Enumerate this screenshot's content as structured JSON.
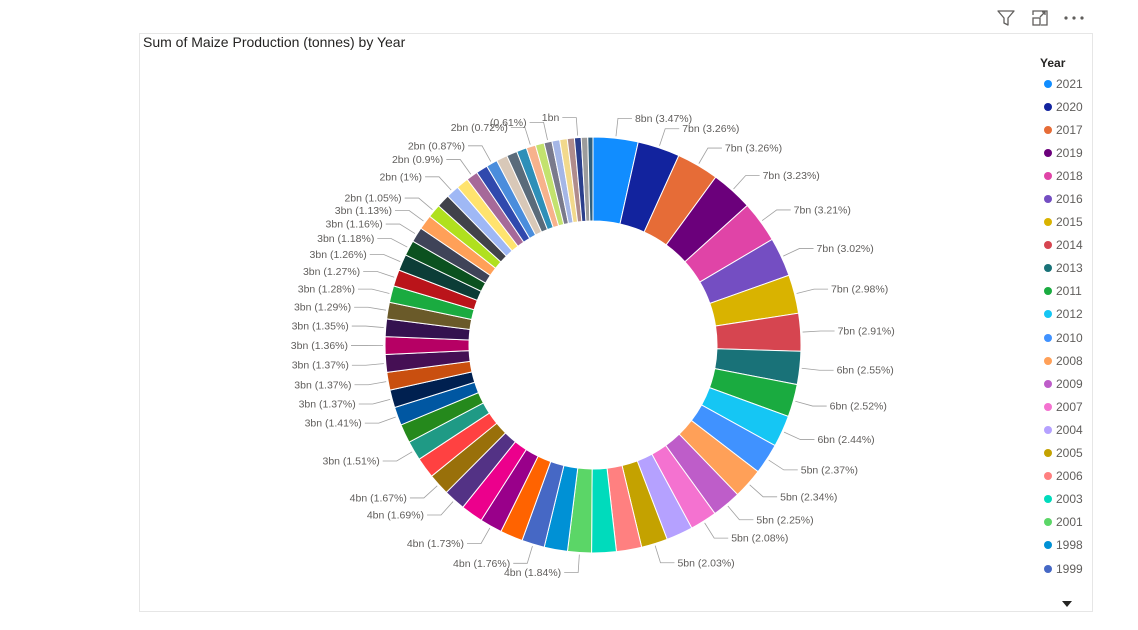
{
  "toolbar": {
    "filter_icon": "filter-icon",
    "focus_icon": "focus-mode-icon",
    "more_icon": "more-options-icon"
  },
  "chart_data": {
    "type": "donut",
    "title": "Sum of Maize Production (tonnes) by Year",
    "legend_title": "Year",
    "legend_position": "right",
    "slices": [
      {
        "year": "2021",
        "label": "8bn (3.47%)",
        "percent": 3.47,
        "color": "#118DFF"
      },
      {
        "year": "2020",
        "label": "7bn (3.26%)",
        "percent": 3.26,
        "color": "#12239E"
      },
      {
        "year": "2017",
        "label": "7bn (3.26%)",
        "percent": 3.26,
        "color": "#E66C37"
      },
      {
        "year": "2019",
        "label": "7bn (3.23%)",
        "percent": 3.23,
        "color": "#6B007B"
      },
      {
        "year": "2018",
        "label": "7bn (3.21%)",
        "percent": 3.21,
        "color": "#E044A7"
      },
      {
        "year": "2016",
        "label": "7bn (3.02%)",
        "percent": 3.02,
        "color": "#744EC2"
      },
      {
        "year": "2015",
        "label": "7bn (2.98%)",
        "percent": 2.98,
        "color": "#D9B300"
      },
      {
        "year": "2014",
        "label": "7bn (2.91%)",
        "percent": 2.91,
        "color": "#D64550"
      },
      {
        "year": "2013",
        "label": "6bn (2.55%)",
        "percent": 2.55,
        "color": "#197278"
      },
      {
        "year": "2011",
        "label": "6bn (2.52%)",
        "percent": 2.52,
        "color": "#1AAB40"
      },
      {
        "year": "2012",
        "label": "6bn (2.44%)",
        "percent": 2.44,
        "color": "#15C6F4"
      },
      {
        "year": "2010",
        "label": "5bn (2.37%)",
        "percent": 2.37,
        "color": "#4092FF"
      },
      {
        "year": "2008",
        "label": "5bn (2.34%)",
        "percent": 2.34,
        "color": "#FFA058"
      },
      {
        "year": "2009",
        "label": "5bn (2.25%)",
        "percent": 2.25,
        "color": "#BE5DC9"
      },
      {
        "year": "2007",
        "label": "5bn (2.08%)",
        "percent": 2.08,
        "color": "#F472D0"
      },
      {
        "year": "2004",
        "label": "",
        "percent": 2.06,
        "color": "#B5A1FF"
      },
      {
        "year": "2005",
        "label": "5bn (2.03%)",
        "percent": 2.03,
        "color": "#C4A200"
      },
      {
        "year": "2006",
        "label": "",
        "percent": 1.95,
        "color": "#FF8080"
      },
      {
        "year": "2003",
        "label": "",
        "percent": 1.9,
        "color": "#00DBBC"
      },
      {
        "year": "2001",
        "label": "4bn (1.84%)",
        "percent": 1.84,
        "color": "#5BD667"
      },
      {
        "year": "1998",
        "label": "",
        "percent": 1.8,
        "color": "#0091D5"
      },
      {
        "year": "1999",
        "label": "4bn (1.76%)",
        "percent": 1.76,
        "color": "#4668C5"
      },
      {
        "year": "",
        "label": "",
        "percent": 1.75,
        "color": "#FF6300"
      },
      {
        "year": "",
        "label": "4bn (1.73%)",
        "percent": 1.73,
        "color": "#99008A"
      },
      {
        "year": "",
        "label": "",
        "percent": 1.71,
        "color": "#EC008C"
      },
      {
        "year": "",
        "label": "4bn (1.69%)",
        "percent": 1.69,
        "color": "#533285"
      },
      {
        "year": "",
        "label": "4bn (1.67%)",
        "percent": 1.67,
        "color": "#99700A"
      },
      {
        "year": "",
        "label": "",
        "percent": 1.6,
        "color": "#FF4141"
      },
      {
        "year": "",
        "label": "3bn (1.51%)",
        "percent": 1.51,
        "color": "#1F9A85"
      },
      {
        "year": "",
        "label": "",
        "percent": 1.45,
        "color": "#25891C"
      },
      {
        "year": "",
        "label": "3bn (1.41%)",
        "percent": 1.41,
        "color": "#0057A2"
      },
      {
        "year": "",
        "label": "3bn (1.37%)",
        "percent": 1.37,
        "color": "#002050"
      },
      {
        "year": "",
        "label": "3bn (1.37%)",
        "percent": 1.37,
        "color": "#C94F0F"
      },
      {
        "year": "",
        "label": "3bn (1.37%)",
        "percent": 1.37,
        "color": "#450F54"
      },
      {
        "year": "",
        "label": "3bn (1.36%)",
        "percent": 1.36,
        "color": "#B60064"
      },
      {
        "year": "",
        "label": "3bn (1.35%)",
        "percent": 1.35,
        "color": "#34124F"
      },
      {
        "year": "",
        "label": "3bn (1.29%)",
        "percent": 1.29,
        "color": "#6A5A29"
      },
      {
        "year": "",
        "label": "3bn (1.28%)",
        "percent": 1.28,
        "color": "#1AAB40"
      },
      {
        "year": "",
        "label": "3bn (1.27%)",
        "percent": 1.27,
        "color": "#BA141A"
      },
      {
        "year": "",
        "label": "3bn (1.26%)",
        "percent": 1.26,
        "color": "#0C3D37"
      },
      {
        "year": "",
        "label": "3bn (1.18%)",
        "percent": 1.18,
        "color": "#0B511F"
      },
      {
        "year": "",
        "label": "3bn (1.16%)",
        "percent": 1.16,
        "color": "#3F4358"
      },
      {
        "year": "",
        "label": "3bn (1.13%)",
        "percent": 1.13,
        "color": "#FFA058"
      },
      {
        "year": "",
        "label": "2bn (1.05%)",
        "percent": 1.05,
        "color": "#B0E01E"
      },
      {
        "year": "",
        "label": "",
        "percent": 1.02,
        "color": "#41424A"
      },
      {
        "year": "",
        "label": "2bn (1%)",
        "percent": 1.0,
        "color": "#9FB8F5"
      },
      {
        "year": "",
        "label": "",
        "percent": 0.95,
        "color": "#FFE36E"
      },
      {
        "year": "",
        "label": "2bn (0.9%)",
        "percent": 0.9,
        "color": "#A66999"
      },
      {
        "year": "",
        "label": "",
        "percent": 0.9,
        "color": "#3049AD"
      },
      {
        "year": "",
        "label": "2bn (0.87%)",
        "percent": 0.87,
        "color": "#4A8DDC"
      },
      {
        "year": "",
        "label": "",
        "percent": 0.85,
        "color": "#D8C8B8"
      },
      {
        "year": "",
        "label": "",
        "percent": 0.82,
        "color": "#5A6B7A"
      },
      {
        "year": "",
        "label": "",
        "percent": 0.78,
        "color": "#2E8FB8"
      },
      {
        "year": "",
        "label": "2bn (0.72%)",
        "percent": 0.72,
        "color": "#F7B28C"
      },
      {
        "year": "",
        "label": "",
        "percent": 0.68,
        "color": "#C3E26E"
      },
      {
        "year": "",
        "label": "(0.61%)",
        "percent": 0.61,
        "color": "#7A7A8C"
      },
      {
        "year": "",
        "label": "",
        "percent": 0.6,
        "color": "#A5B6E6"
      },
      {
        "year": "",
        "label": "",
        "percent": 0.58,
        "color": "#F2D98C"
      },
      {
        "year": "",
        "label": "",
        "percent": 0.55,
        "color": "#B08C8C"
      },
      {
        "year": "",
        "label": "1bn",
        "percent": 0.52,
        "color": "#2B3F8C"
      },
      {
        "year": "",
        "label": "",
        "percent": 0.5,
        "color": "#9C9C9C"
      },
      {
        "year": "",
        "label": "",
        "percent": 0.4,
        "color": "#2F5F7F"
      }
    ]
  }
}
